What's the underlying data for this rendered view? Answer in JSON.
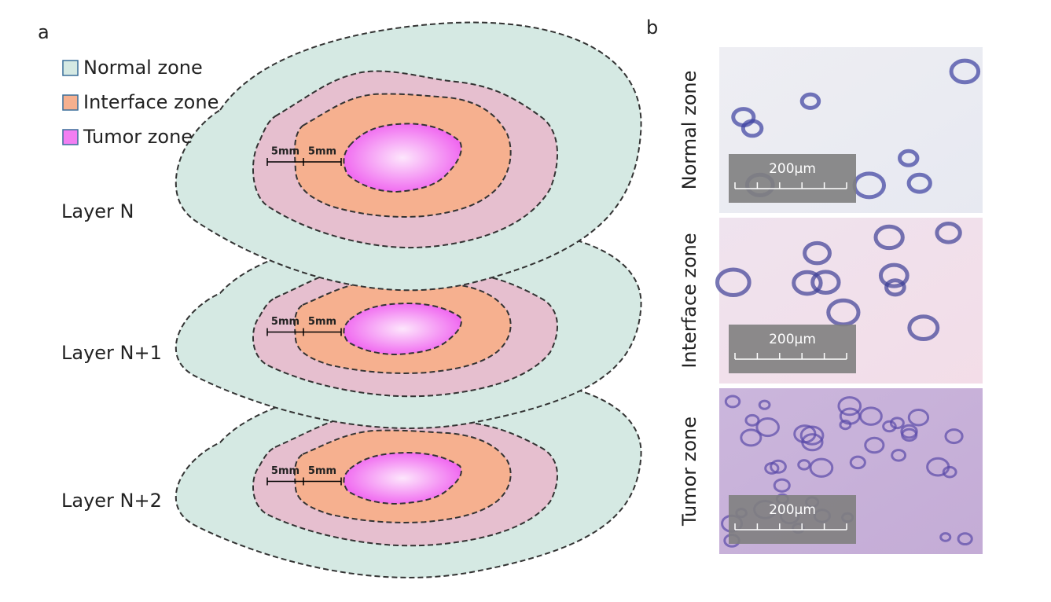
{
  "panel_a": {
    "label": "a",
    "legend": [
      {
        "label": "Normal zone",
        "color": "#d5e9e3"
      },
      {
        "label": "Interface zone",
        "color": "#f6b08f"
      },
      {
        "label": "Tumor zone",
        "color": "#f27ef2"
      }
    ],
    "layers": [
      {
        "label": "Layer N",
        "margins": [
          "5mm",
          "5mm"
        ]
      },
      {
        "label": "Layer N+1",
        "margins": [
          "5mm",
          "5mm"
        ]
      },
      {
        "label": "Layer N+2",
        "margins": [
          "5mm",
          "5mm"
        ]
      }
    ]
  },
  "panel_b": {
    "label": "b",
    "images": [
      {
        "label": "Normal zone",
        "scale_bar": "200μm"
      },
      {
        "label": "Interface zone",
        "scale_bar": "200μm"
      },
      {
        "label": "Tumor zone",
        "scale_bar": "200μm"
      }
    ]
  }
}
